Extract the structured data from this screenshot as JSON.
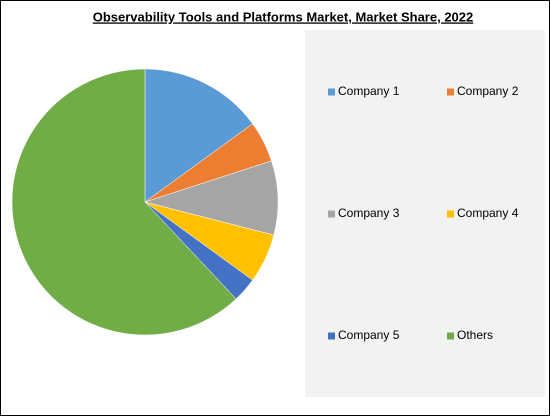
{
  "chart_data": {
    "type": "pie",
    "title": "Observability Tools and Platforms Market, Market Share, 2022",
    "series": [
      {
        "name": "Company 1",
        "color": "#5b9bd5",
        "values": [
          15
        ]
      },
      {
        "name": "Company 2",
        "color": "#ed7d31",
        "values": [
          5
        ]
      },
      {
        "name": "Company 3",
        "color": "#a5a5a5",
        "values": [
          9
        ]
      },
      {
        "name": "Company 4",
        "color": "#ffc000",
        "values": [
          6
        ]
      },
      {
        "name": "Company 5",
        "color": "#4472c4",
        "values": [
          3
        ]
      },
      {
        "name": "Others",
        "color": "#70ad47",
        "values": [
          62
        ]
      }
    ]
  }
}
